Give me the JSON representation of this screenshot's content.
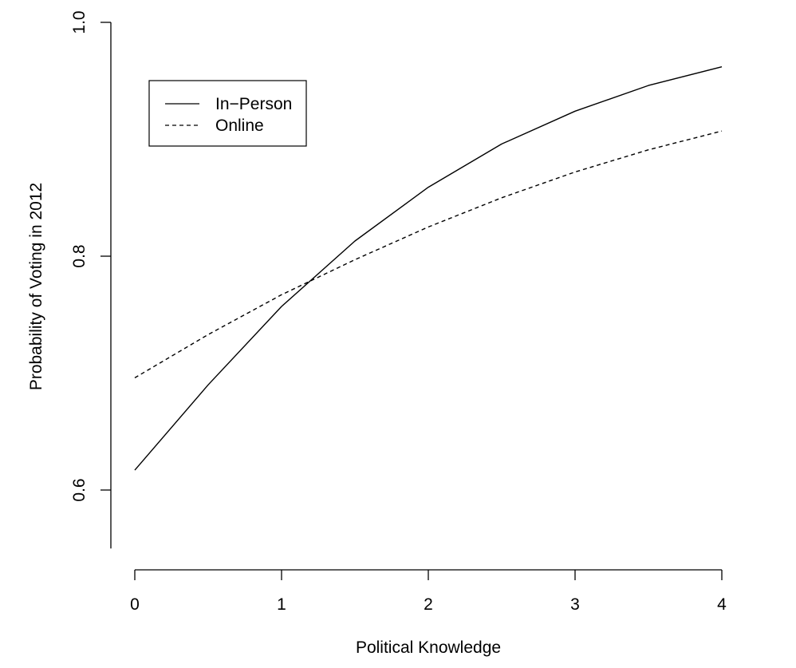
{
  "chart_data": {
    "type": "line",
    "title": "",
    "xlabel": "Political Knowledge",
    "ylabel": "Probability of Voting in 2012",
    "xlim": [
      0,
      4
    ],
    "ylim": [
      0.55,
      1.0
    ],
    "x_ticks": [
      "0",
      "1",
      "2",
      "3",
      "4"
    ],
    "y_ticks": [
      "0.6",
      "0.8",
      "1.0"
    ],
    "grid": false,
    "legend_position": "top-left",
    "x": [
      0,
      0.5,
      1,
      1.5,
      2,
      2.5,
      3,
      3.5,
      4
    ],
    "series": [
      {
        "name": "In−Person",
        "line_style": "solid",
        "color": "#000000",
        "values": [
          0.617,
          0.69,
          0.757,
          0.813,
          0.859,
          0.896,
          0.924,
          0.946,
          0.962
        ]
      },
      {
        "name": "Online",
        "line_style": "dashed",
        "color": "#000000",
        "values": [
          0.696,
          0.733,
          0.767,
          0.797,
          0.825,
          0.85,
          0.872,
          0.891,
          0.907
        ]
      }
    ]
  }
}
